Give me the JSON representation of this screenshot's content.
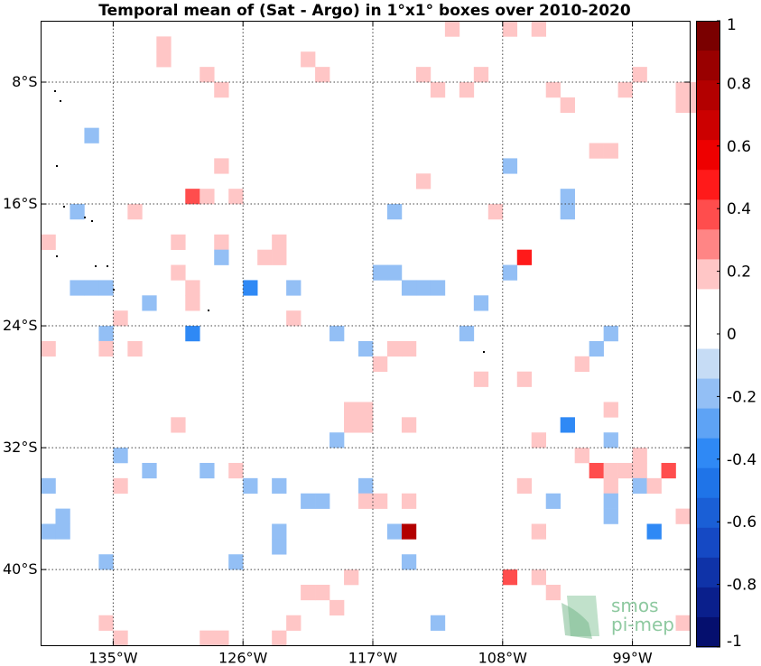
{
  "chart_data": {
    "type": "heatmap",
    "title": "Temporal mean of (Sat - Argo) in 1°x1° boxes over 2010-2020",
    "xlim": [
      -140,
      -95
    ],
    "ylim": [
      -45,
      -4
    ],
    "x_ticks": [
      -135,
      -126,
      -117,
      -108,
      -99
    ],
    "x_tick_labels": [
      "135°W",
      "126°W",
      "117°W",
      "108°W",
      "99°W"
    ],
    "y_ticks": [
      -8,
      -16,
      -24,
      -32,
      -40
    ],
    "y_tick_labels": [
      "8°S",
      "16°S",
      "24°S",
      "32°S",
      "40°S"
    ],
    "grid": true,
    "colorbar": {
      "min": -1,
      "max": 1,
      "ticks": [
        1,
        0.8,
        0.6,
        0.4,
        0.2,
        0,
        -0.2,
        -0.4,
        -0.6,
        -0.8,
        -1
      ],
      "tick_labels": [
        "1",
        "0.8",
        "0.6",
        "0.4",
        "0.2",
        "0",
        "-0.2",
        "-0.4",
        "-0.6",
        "-0.8",
        "-1"
      ],
      "colors_top_to_bottom": [
        "#7a0000",
        "#990000",
        "#b30000",
        "#cc0000",
        "#ee0000",
        "#ff1a1a",
        "#ff4d4d",
        "#ff8585",
        "#ffc6c6",
        "#ffffff",
        "#ffffff",
        "#c6dcf5",
        "#93bff5",
        "#5ea3f5",
        "#2f89f5",
        "#1f74e8",
        "#1a5fd6",
        "#1549c4",
        "#0f33a8",
        "#0a1f8c",
        "#050f6e"
      ]
    },
    "cells": [
      {
        "lon": -131.5,
        "lat": -5.5,
        "v": 0.15
      },
      {
        "lon": -131.5,
        "lat": -6.5,
        "v": 0.15
      },
      {
        "lon": -128.5,
        "lat": -7.5,
        "v": 0.15
      },
      {
        "lon": -127.5,
        "lat": -8.5,
        "v": 0.15
      },
      {
        "lon": -121.5,
        "lat": -6.5,
        "v": 0.15
      },
      {
        "lon": -120.5,
        "lat": -7.5,
        "v": 0.15
      },
      {
        "lon": -113.5,
        "lat": -7.5,
        "v": 0.15
      },
      {
        "lon": -112.5,
        "lat": -8.5,
        "v": 0.15
      },
      {
        "lon": -111.5,
        "lat": -4.5,
        "v": 0.15
      },
      {
        "lon": -110.5,
        "lat": -8.5,
        "v": 0.15
      },
      {
        "lon": -109.5,
        "lat": -7.5,
        "v": 0.15
      },
      {
        "lon": -107.5,
        "lat": -4.5,
        "v": 0.15
      },
      {
        "lon": -105.5,
        "lat": -4.5,
        "v": 0.15
      },
      {
        "lon": -104.5,
        "lat": -8.5,
        "v": 0.15
      },
      {
        "lon": -103.5,
        "lat": -9.5,
        "v": 0.15
      },
      {
        "lon": -101.5,
        "lat": -12.5,
        "v": 0.15
      },
      {
        "lon": -100.5,
        "lat": -12.5,
        "v": 0.15
      },
      {
        "lon": -99.5,
        "lat": -8.5,
        "v": 0.15
      },
      {
        "lon": -98.5,
        "lat": -7.5,
        "v": 0.15
      },
      {
        "lon": -95.5,
        "lat": -8.5,
        "v": 0.15
      },
      {
        "lon": -94.5,
        "lat": -8.5,
        "v": 0.15
      },
      {
        "lon": -95.5,
        "lat": -9.5,
        "v": 0.15
      },
      {
        "lon": -94.5,
        "lat": -9.5,
        "v": 0.15
      },
      {
        "lon": -136.5,
        "lat": -11.5,
        "v": -0.15
      },
      {
        "lon": -127.5,
        "lat": -13.5,
        "v": 0.15
      },
      {
        "lon": -113.5,
        "lat": -14.5,
        "v": 0.15
      },
      {
        "lon": -107.5,
        "lat": -13.5,
        "v": -0.15
      },
      {
        "lon": -115.5,
        "lat": -16.5,
        "v": -0.15
      },
      {
        "lon": -103.5,
        "lat": -15.5,
        "v": -0.15
      },
      {
        "lon": -103.5,
        "lat": -16.5,
        "v": -0.15
      },
      {
        "lon": -129.5,
        "lat": -15.5,
        "v": 0.35
      },
      {
        "lon": -128.5,
        "lat": -15.5,
        "v": 0.15
      },
      {
        "lon": -126.5,
        "lat": -15.5,
        "v": 0.15
      },
      {
        "lon": -133.5,
        "lat": -16.5,
        "v": 0.15
      },
      {
        "lon": -137.5,
        "lat": -16.5,
        "v": -0.15
      },
      {
        "lon": -108.5,
        "lat": -16.5,
        "v": 0.15
      },
      {
        "lon": -139.5,
        "lat": -18.5,
        "v": 0.15
      },
      {
        "lon": -130.5,
        "lat": -18.5,
        "v": 0.15
      },
      {
        "lon": -127.5,
        "lat": -18.5,
        "v": 0.15
      },
      {
        "lon": -127.5,
        "lat": -19.5,
        "v": -0.15
      },
      {
        "lon": -123.5,
        "lat": -18.5,
        "v": 0.15
      },
      {
        "lon": -123.5,
        "lat": -19.5,
        "v": 0.15
      },
      {
        "lon": -124.5,
        "lat": -19.5,
        "v": 0.15
      },
      {
        "lon": -106.5,
        "lat": -19.5,
        "v": 0.45
      },
      {
        "lon": -130.5,
        "lat": -20.5,
        "v": 0.15
      },
      {
        "lon": -116.5,
        "lat": -20.5,
        "v": -0.15
      },
      {
        "lon": -115.5,
        "lat": -20.5,
        "v": -0.15
      },
      {
        "lon": -107.5,
        "lat": -20.5,
        "v": -0.15
      },
      {
        "lon": -137.5,
        "lat": -21.5,
        "v": -0.15
      },
      {
        "lon": -136.5,
        "lat": -21.5,
        "v": -0.15
      },
      {
        "lon": -135.5,
        "lat": -21.5,
        "v": -0.15
      },
      {
        "lon": -129.5,
        "lat": -21.5,
        "v": 0.15
      },
      {
        "lon": -129.5,
        "lat": -22.5,
        "v": 0.15
      },
      {
        "lon": -125.5,
        "lat": -21.5,
        "v": -0.35
      },
      {
        "lon": -122.5,
        "lat": -21.5,
        "v": -0.15
      },
      {
        "lon": -113.5,
        "lat": -21.5,
        "v": -0.15
      },
      {
        "lon": -114.5,
        "lat": -21.5,
        "v": -0.15
      },
      {
        "lon": -112.5,
        "lat": -21.5,
        "v": -0.15
      },
      {
        "lon": -132.5,
        "lat": -22.5,
        "v": -0.15
      },
      {
        "lon": -109.5,
        "lat": -22.5,
        "v": -0.15
      },
      {
        "lon": -134.5,
        "lat": -23.5,
        "v": 0.15
      },
      {
        "lon": -122.5,
        "lat": -23.5,
        "v": 0.15
      },
      {
        "lon": -135.5,
        "lat": -24.5,
        "v": -0.15
      },
      {
        "lon": -129.5,
        "lat": -24.5,
        "v": -0.35
      },
      {
        "lon": -119.5,
        "lat": -24.5,
        "v": -0.15
      },
      {
        "lon": -110.5,
        "lat": -24.5,
        "v": -0.15
      },
      {
        "lon": -100.5,
        "lat": -24.5,
        "v": -0.15
      },
      {
        "lon": -139.5,
        "lat": -25.5,
        "v": 0.15
      },
      {
        "lon": -135.5,
        "lat": -25.5,
        "v": 0.15
      },
      {
        "lon": -133.5,
        "lat": -25.5,
        "v": 0.15
      },
      {
        "lon": -117.5,
        "lat": -25.5,
        "v": -0.15
      },
      {
        "lon": -115.5,
        "lat": -25.5,
        "v": 0.15
      },
      {
        "lon": -114.5,
        "lat": -25.5,
        "v": 0.15
      },
      {
        "lon": -101.5,
        "lat": -25.5,
        "v": -0.15
      },
      {
        "lon": -116.5,
        "lat": -26.5,
        "v": 0.15
      },
      {
        "lon": -102.5,
        "lat": -26.5,
        "v": 0.15
      },
      {
        "lon": -109.5,
        "lat": -27.5,
        "v": 0.15
      },
      {
        "lon": -106.5,
        "lat": -27.5,
        "v": 0.15
      },
      {
        "lon": -118.5,
        "lat": -29.5,
        "v": 0.15
      },
      {
        "lon": -117.5,
        "lat": -29.5,
        "v": 0.15
      },
      {
        "lon": -118.5,
        "lat": -30.5,
        "v": 0.15
      },
      {
        "lon": -117.5,
        "lat": -30.5,
        "v": 0.15
      },
      {
        "lon": -100.5,
        "lat": -29.5,
        "v": 0.15
      },
      {
        "lon": -130.5,
        "lat": -30.5,
        "v": 0.15
      },
      {
        "lon": -114.5,
        "lat": -30.5,
        "v": 0.15
      },
      {
        "lon": -103.5,
        "lat": -30.5,
        "v": -0.35
      },
      {
        "lon": -119.5,
        "lat": -31.5,
        "v": -0.15
      },
      {
        "lon": -105.5,
        "lat": -31.5,
        "v": 0.15
      },
      {
        "lon": -100.5,
        "lat": -31.5,
        "v": -0.15
      },
      {
        "lon": -134.5,
        "lat": -32.5,
        "v": -0.15
      },
      {
        "lon": -102.5,
        "lat": -32.5,
        "v": 0.15
      },
      {
        "lon": -98.5,
        "lat": -32.5,
        "v": 0.15
      },
      {
        "lon": -132.5,
        "lat": -33.5,
        "v": -0.15
      },
      {
        "lon": -128.5,
        "lat": -33.5,
        "v": -0.15
      },
      {
        "lon": -126.5,
        "lat": -33.5,
        "v": 0.15
      },
      {
        "lon": -101.5,
        "lat": -33.5,
        "v": 0.35
      },
      {
        "lon": -100.5,
        "lat": -33.5,
        "v": 0.15
      },
      {
        "lon": -99.5,
        "lat": -33.5,
        "v": 0.15
      },
      {
        "lon": -98.5,
        "lat": -33.5,
        "v": 0.15
      },
      {
        "lon": -96.5,
        "lat": -33.5,
        "v": 0.35
      },
      {
        "lon": -139.5,
        "lat": -34.5,
        "v": -0.15
      },
      {
        "lon": -134.5,
        "lat": -34.5,
        "v": 0.15
      },
      {
        "lon": -125.5,
        "lat": -34.5,
        "v": -0.15
      },
      {
        "lon": -123.5,
        "lat": -34.5,
        "v": -0.15
      },
      {
        "lon": -117.5,
        "lat": -34.5,
        "v": -0.15
      },
      {
        "lon": -106.5,
        "lat": -34.5,
        "v": 0.15
      },
      {
        "lon": -100.5,
        "lat": -34.5,
        "v": 0.15
      },
      {
        "lon": -98.5,
        "lat": -34.5,
        "v": -0.15
      },
      {
        "lon": -97.5,
        "lat": -34.5,
        "v": 0.15
      },
      {
        "lon": -121.5,
        "lat": -35.5,
        "v": -0.15
      },
      {
        "lon": -120.5,
        "lat": -35.5,
        "v": -0.15
      },
      {
        "lon": -117.5,
        "lat": -35.5,
        "v": 0.15
      },
      {
        "lon": -116.5,
        "lat": -35.5,
        "v": 0.15
      },
      {
        "lon": -114.5,
        "lat": -35.5,
        "v": 0.15
      },
      {
        "lon": -104.5,
        "lat": -35.5,
        "v": -0.15
      },
      {
        "lon": -100.5,
        "lat": -35.5,
        "v": -0.15
      },
      {
        "lon": -138.5,
        "lat": -36.5,
        "v": -0.15
      },
      {
        "lon": -100.5,
        "lat": -36.5,
        "v": -0.15
      },
      {
        "lon": -95.5,
        "lat": -36.5,
        "v": 0.15
      },
      {
        "lon": -139.5,
        "lat": -37.5,
        "v": -0.15
      },
      {
        "lon": -138.5,
        "lat": -37.5,
        "v": -0.15
      },
      {
        "lon": -123.5,
        "lat": -37.5,
        "v": -0.15
      },
      {
        "lon": -115.5,
        "lat": -37.5,
        "v": -0.15
      },
      {
        "lon": -114.5,
        "lat": -37.5,
        "v": 0.75
      },
      {
        "lon": -105.5,
        "lat": -37.5,
        "v": 0.15
      },
      {
        "lon": -97.5,
        "lat": -37.5,
        "v": -0.35
      },
      {
        "lon": -123.5,
        "lat": -38.5,
        "v": -0.15
      },
      {
        "lon": -135.5,
        "lat": -39.5,
        "v": -0.15
      },
      {
        "lon": -126.5,
        "lat": -39.5,
        "v": -0.15
      },
      {
        "lon": -114.5,
        "lat": -39.5,
        "v": -0.15
      },
      {
        "lon": -118.5,
        "lat": -40.5,
        "v": 0.15
      },
      {
        "lon": -107.5,
        "lat": -40.5,
        "v": 0.35
      },
      {
        "lon": -105.5,
        "lat": -40.5,
        "v": 0.15
      },
      {
        "lon": -121.5,
        "lat": -41.5,
        "v": 0.15
      },
      {
        "lon": -120.5,
        "lat": -41.5,
        "v": 0.15
      },
      {
        "lon": -104.5,
        "lat": -41.5,
        "v": 0.15
      },
      {
        "lon": -119.5,
        "lat": -42.5,
        "v": 0.15
      },
      {
        "lon": -135.5,
        "lat": -43.5,
        "v": 0.15
      },
      {
        "lon": -122.5,
        "lat": -43.5,
        "v": 0.15
      },
      {
        "lon": -112.5,
        "lat": -43.5,
        "v": -0.15
      },
      {
        "lon": -123.5,
        "lat": -44.5,
        "v": 0.15
      },
      {
        "lon": -134.5,
        "lat": -44.5,
        "v": 0.15
      },
      {
        "lon": -128.5,
        "lat": -44.5,
        "v": 0.15
      },
      {
        "lon": -127.5,
        "lat": -44.5,
        "v": 0.15
      },
      {
        "lon": -95.5,
        "lat": -43.5,
        "v": 0.15
      }
    ]
  },
  "logo": {
    "line1": "smos",
    "line2": "pi-mep",
    "color": "#8ec9a0"
  }
}
